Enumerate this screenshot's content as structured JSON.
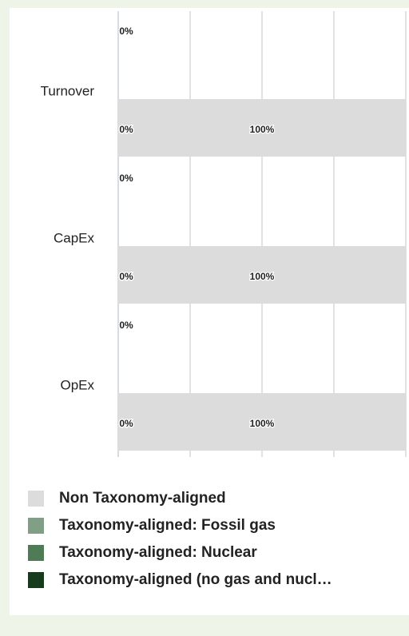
{
  "chart_data": {
    "type": "stacked-bar-horizontal",
    "categories": [
      "Turnover",
      null,
      "CapEx",
      null,
      "OpEx",
      null
    ],
    "series": [
      {
        "name": "Taxonomy-aligned (no gas and nucl…",
        "color": "#173b1d",
        "values": [
          0,
          0,
          0,
          0,
          0,
          0
        ],
        "value_labels": [
          "0%",
          "0%",
          "0%",
          "0%",
          "0%",
          "0%"
        ]
      },
      {
        "name": "Taxonomy-aligned: Nuclear",
        "color": "#4f7b57",
        "values": [
          0,
          0,
          0,
          0,
          0,
          0
        ],
        "value_labels": [
          "0%",
          "0%",
          "0%",
          "0%",
          "0%",
          "0%"
        ]
      },
      {
        "name": "Taxonomy-aligned: Fossil gas",
        "color": "#809f86",
        "values": [
          0,
          0,
          0,
          0,
          0,
          0
        ],
        "value_labels": [
          "0%",
          "0%",
          "0%",
          "0%",
          "0%",
          "0%"
        ]
      },
      {
        "name": "Non Taxonomy-aligned",
        "color": "#dcdcdc",
        "values": [
          0,
          100,
          0,
          100,
          0,
          100
        ],
        "value_labels": [
          "0%",
          "100%",
          "0%",
          "100%",
          "0%",
          "100%"
        ]
      }
    ],
    "xlim": [
      0,
      100
    ],
    "xticks": [
      0,
      25,
      50,
      75,
      100
    ],
    "grid": true,
    "legend": "bottom"
  }
}
